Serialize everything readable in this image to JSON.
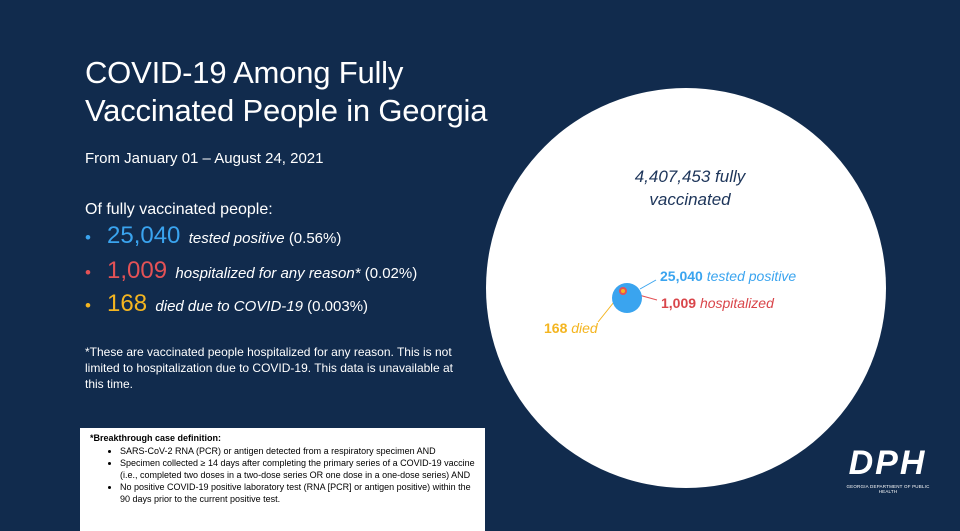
{
  "slide": {
    "title_line1": "COVID-19 Among Fully",
    "title_line2": "Vaccinated People in Georgia",
    "date_range": "From January 01 – August 24, 2021",
    "intro": "Of fully vaccinated people:",
    "stats": [
      {
        "bullet": "•",
        "number": "25,040",
        "description": "tested positive",
        "percent": "(0.56%)",
        "color": "#3aa4ef"
      },
      {
        "bullet": "•",
        "number": "1,009",
        "description": "hospitalized for any reason*",
        "percent": "(0.02%)",
        "color": "#e35256"
      },
      {
        "bullet": "•",
        "number": "168",
        "description": "died due to COVID-19",
        "percent": "(0.003%)",
        "color": "#f4b520"
      }
    ],
    "footnote": "*These are vaccinated people hospitalized for any reason. This is not limited to hospitalization due to COVID-19. This data is unavailable at this time.",
    "definition": {
      "title": "*Breakthrough case definition:",
      "items": [
        "SARS-CoV-2 RNA (PCR) or antigen detected from a respiratory specimen AND",
        "Specimen collected ≥ 14 days after completing the primary series of a COVID-19 vaccine (i.e., completed two doses in a two-dose series OR one dose in a one-dose series) AND",
        "No positive COVID-19 positive laboratory test (RNA [PCR] or antigen positive) within the 90 days prior to the current positive test."
      ]
    }
  },
  "diagram": {
    "total_label_line1": "4,407,453 fully",
    "total_label_line2": "vaccinated",
    "positive_number": "25,040",
    "positive_text": "tested positive",
    "hospitalized_number": "1,009",
    "hospitalized_text": "hospitalized",
    "died_number": "168",
    "died_text": "died",
    "colors": {
      "background": "#112b4d",
      "fully_vaccinated": "#ffffff",
      "positive": "#3aa4ef",
      "hospitalized": "#e35256",
      "died": "#f4b520"
    }
  },
  "logo": {
    "text": "DPH",
    "subtext": "GEORGIA DEPARTMENT OF PUBLIC HEALTH"
  }
}
